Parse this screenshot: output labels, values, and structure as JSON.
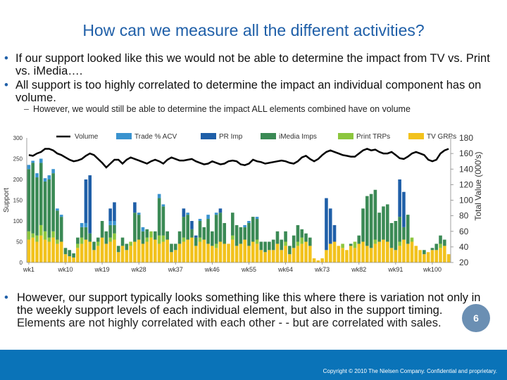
{
  "slide": {
    "title": "How can we measure all the different activities?",
    "bullets": [
      "If our support looked like this we would not be able to determine the impact from TV vs. Print vs. iMedia….",
      "All support is too highly correlated to determine the impact an individual component has on volume."
    ],
    "subbullet": "However, we would still be able to determine the impact ALL elements combined have on volume",
    "bottom_bullet_line1": "However, our support typically looks something like this where there is variation not only in the weekly support levels of each individual element, but also in the support timing.",
    "bottom_bullet_line2": "Elements are not highly correlated with each other - - but are correlated with sales.",
    "page_number": "6",
    "copyright": "Copyright © 2010 The Nielsen Company. Confidential and proprietary."
  },
  "colors": {
    "title": "#1f5fa8",
    "trade": "#3a93cf",
    "pr": "#1f5fa8",
    "imedia": "#3b8a55",
    "print": "#8cc63e",
    "tv": "#f2c21d",
    "footer": "#0a73b8"
  },
  "chart_data": {
    "type": "bar",
    "stacked": true,
    "ylabel": "Support",
    "y2label": "Total Value (000's)",
    "ylim": [
      0,
      300
    ],
    "y2lim": [
      20,
      180
    ],
    "yticks": [
      "0",
      "50",
      "100",
      "150",
      "200",
      "250",
      "300"
    ],
    "y2ticks": [
      "20",
      "40",
      "60",
      "80",
      "100",
      "120",
      "140",
      "160",
      "180"
    ],
    "xticks": [
      "wk1",
      "wk10",
      "wk19",
      "wk28",
      "wk37",
      "wk46",
      "wk55",
      "wk64",
      "wk73",
      "wk82",
      "wk91",
      "wk100"
    ],
    "legend": [
      "Volume",
      "Trade % ACV",
      "PR Imp",
      "iMedia Imps",
      "Print TRPs",
      "TV GRPs"
    ],
    "weeks": 104,
    "series": [
      {
        "name": "TV GRPs",
        "values": [
          55,
          60,
          50,
          65,
          55,
          50,
          60,
          45,
          50,
          20,
          15,
          12,
          35,
          45,
          55,
          50,
          30,
          40,
          60,
          45,
          50,
          55,
          25,
          40,
          30,
          40,
          50,
          55,
          45,
          50,
          60,
          55,
          45,
          50,
          55,
          25,
          30,
          45,
          50,
          55,
          60,
          40,
          50,
          55,
          45,
          40,
          35,
          50,
          45,
          45,
          55,
          40,
          45,
          55,
          40,
          50,
          45,
          30,
          25,
          30,
          30,
          45,
          30,
          40,
          20,
          35,
          40,
          45,
          50,
          40,
          10,
          5,
          10,
          30,
          45,
          50,
          40,
          35,
          30,
          40,
          35,
          45,
          50,
          40,
          35,
          45,
          50,
          55,
          50,
          35,
          30,
          40,
          55,
          45,
          50,
          40,
          30,
          20,
          25,
          30,
          30,
          35,
          40,
          20
        ]
      },
      {
        "name": "Print TRPs",
        "values": [
          20,
          10,
          15,
          25,
          20,
          10,
          15,
          10,
          0,
          0,
          0,
          0,
          10,
          15,
          0,
          0,
          0,
          10,
          0,
          0,
          10,
          15,
          0,
          0,
          0,
          10,
          0,
          0,
          0,
          10,
          15,
          0,
          20,
          15,
          0,
          0,
          0,
          0,
          10,
          0,
          0,
          0,
          10,
          0,
          0,
          0,
          10,
          0,
          0,
          0,
          10,
          0,
          0,
          0,
          0,
          0,
          10,
          0,
          0,
          0,
          0,
          0,
          0,
          10,
          0,
          0,
          10,
          15,
          0,
          0,
          0,
          0,
          0,
          0,
          0,
          0,
          0,
          10,
          0,
          0,
          15,
          0,
          0,
          0,
          0,
          10,
          0,
          0,
          0,
          0,
          0,
          10,
          0,
          0,
          10,
          0,
          0,
          0,
          0,
          0,
          0,
          10,
          0,
          0
        ]
      },
      {
        "name": "iMedia Imps",
        "values": [
          150,
          170,
          140,
          150,
          120,
          140,
          140,
          70,
          60,
          15,
          15,
          10,
          15,
          25,
          30,
          20,
          20,
          10,
          40,
          30,
          30,
          20,
          15,
          20,
          15,
          0,
          70,
          60,
          30,
          20,
          0,
          20,
          90,
          70,
          20,
          20,
          15,
          30,
          50,
          60,
          20,
          20,
          40,
          30,
          60,
          35,
          70,
          70,
          50,
          0,
          55,
          50,
          40,
          30,
          55,
          60,
          50,
          20,
          25,
          20,
          25,
          30,
          25,
          25,
          20,
          30,
          40,
          20,
          20,
          20,
          0,
          0,
          0,
          0,
          0,
          0,
          0,
          0,
          0,
          5,
          0,
          20,
          80,
          120,
          130,
          120,
          70,
          80,
          90,
          60,
          70,
          60,
          30,
          70,
          0,
          0,
          0,
          10,
          0,
          5,
          15,
          20,
          15,
          0
        ]
      },
      {
        "name": "PR Imp",
        "values": [
          0,
          0,
          0,
          0,
          0,
          0,
          0,
          0,
          0,
          0,
          0,
          0,
          0,
          0,
          0,
          0,
          0,
          0,
          0,
          0,
          0,
          0,
          0,
          0,
          0,
          0,
          0,
          0,
          0,
          0,
          0,
          0,
          0,
          0,
          0,
          0,
          0,
          0,
          0,
          0,
          0,
          0,
          0,
          0,
          0,
          0,
          0,
          0,
          0,
          0,
          0,
          0,
          0,
          0,
          0,
          0,
          0,
          0,
          0,
          0,
          0,
          0,
          0,
          0,
          0,
          0,
          0,
          0,
          0,
          0,
          0,
          0,
          0,
          0,
          0,
          0,
          0,
          0,
          0,
          0,
          0,
          0,
          0,
          0,
          0,
          0,
          0,
          0,
          0,
          0,
          0,
          0,
          0,
          0,
          0,
          0,
          0,
          0,
          0,
          0,
          0,
          0,
          0,
          0
        ]
      },
      {
        "name": "Trade % ACV",
        "values": [
          10,
          5,
          10,
          10,
          8,
          10,
          10,
          5,
          5,
          0,
          0,
          0,
          0,
          10,
          10,
          0,
          0,
          0,
          0,
          0,
          10,
          10,
          0,
          0,
          0,
          0,
          0,
          5,
          10,
          0,
          0,
          0,
          10,
          5,
          0,
          0,
          0,
          0,
          0,
          5,
          0,
          0,
          5,
          0,
          10,
          0,
          5,
          0,
          0,
          0,
          0,
          0,
          0,
          5,
          5,
          0,
          5,
          0,
          0,
          0,
          0,
          0,
          0,
          0,
          0,
          0,
          0,
          0,
          0,
          0,
          0,
          0,
          0,
          0,
          0,
          0,
          0,
          0,
          0,
          0,
          0,
          0,
          0,
          0,
          0,
          0,
          0,
          0,
          0,
          0,
          0,
          0,
          0,
          0,
          0,
          0,
          0,
          0,
          0,
          0,
          0,
          0,
          0,
          0
        ]
      },
      {
        "name": "Volume",
        "values": [
          158,
          157,
          160,
          162,
          166,
          166,
          164,
          160,
          158,
          155,
          152,
          150,
          151,
          153,
          157,
          160,
          158,
          153,
          148,
          142,
          147,
          152,
          152,
          147,
          152,
          155,
          153,
          151,
          149,
          147,
          150,
          152,
          150,
          147,
          152,
          155,
          153,
          151,
          151,
          152,
          153,
          150,
          148,
          146,
          147,
          150,
          148,
          146,
          147,
          150,
          151,
          150,
          146,
          145,
          147,
          152,
          150,
          149,
          147,
          148,
          149,
          150,
          151,
          150,
          148,
          147,
          150,
          155,
          157,
          153,
          150,
          153,
          158,
          162,
          164,
          162,
          160,
          158,
          157,
          156,
          156,
          160,
          164,
          166,
          164,
          165,
          162,
          160,
          160,
          162,
          158,
          154,
          153,
          156,
          160,
          162,
          160,
          158,
          152,
          150,
          152,
          160,
          164,
          166
        ]
      }
    ],
    "pr_spikes": [
      {
        "week": 14,
        "value": 200
      },
      {
        "week": 15,
        "value": 210
      },
      {
        "week": 20,
        "value": 130
      },
      {
        "week": 21,
        "value": 145
      },
      {
        "week": 26,
        "value": 145
      },
      {
        "week": 38,
        "value": 130
      },
      {
        "week": 39,
        "value": 120
      },
      {
        "week": 40,
        "value": 100
      },
      {
        "week": 41,
        "value": 65
      },
      {
        "week": 47,
        "value": 130
      },
      {
        "week": 54,
        "value": 60
      },
      {
        "week": 73,
        "value": 155
      },
      {
        "week": 74,
        "value": 130
      },
      {
        "week": 75,
        "value": 90
      },
      {
        "week": 91,
        "value": 200
      },
      {
        "week": 92,
        "value": 170
      }
    ]
  }
}
